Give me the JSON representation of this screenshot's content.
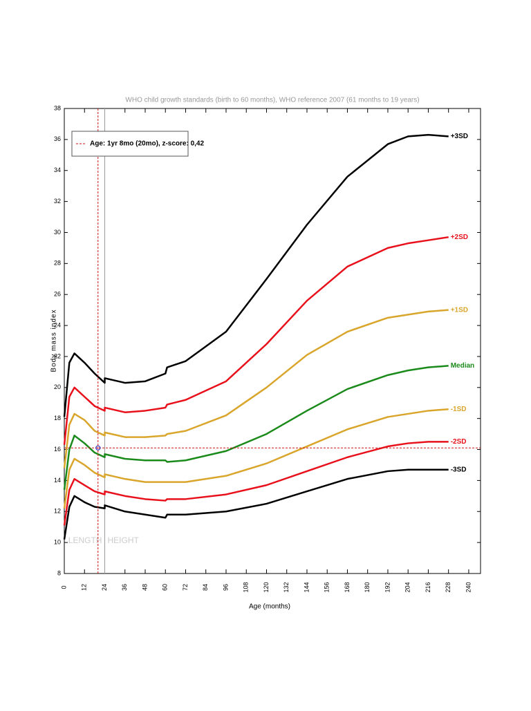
{
  "chart_data": {
    "type": "line",
    "title": "WHO child growth standards (birth to 60 months), WHO reference 2007 (61 months to 19 years)",
    "x_label": "Age (months)",
    "y_label": "Body mass index",
    "xlim": [
      0,
      247
    ],
    "ylim": [
      8,
      38
    ],
    "xticks": [
      0,
      12,
      24,
      36,
      48,
      60,
      72,
      84,
      96,
      108,
      120,
      132,
      144,
      156,
      168,
      180,
      192,
      204,
      216,
      228,
      240
    ],
    "yticks": [
      8,
      10,
      12,
      14,
      16,
      18,
      20,
      22,
      24,
      26,
      28,
      30,
      32,
      34,
      36,
      38
    ],
    "x": [
      0,
      3,
      6,
      12,
      18,
      24,
      24,
      36,
      48,
      60,
      61,
      72,
      96,
      120,
      144,
      168,
      192,
      204,
      216,
      228
    ],
    "series": [
      {
        "name": "+3SD",
        "color": "#000000",
        "values": [
          18.1,
          21.6,
          22.2,
          21.6,
          20.9,
          20.3,
          20.6,
          20.3,
          20.4,
          20.9,
          21.3,
          21.7,
          23.6,
          27.0,
          30.5,
          33.6,
          35.7,
          36.2,
          36.3,
          36.2
        ]
      },
      {
        "name": "+2SD",
        "color": "#e8101a",
        "values": [
          16.3,
          19.4,
          20.0,
          19.4,
          18.8,
          18.5,
          18.7,
          18.4,
          18.5,
          18.7,
          18.9,
          19.2,
          20.4,
          22.8,
          25.6,
          27.8,
          29.0,
          29.3,
          29.5,
          29.7
        ]
      },
      {
        "name": "+1SD",
        "color": "#d9a52a",
        "values": [
          14.8,
          17.6,
          18.3,
          17.9,
          17.2,
          16.9,
          17.1,
          16.8,
          16.8,
          16.9,
          17.0,
          17.2,
          18.2,
          20.0,
          22.1,
          23.6,
          24.5,
          24.7,
          24.9,
          25.0
        ]
      },
      {
        "name": "Median",
        "color": "#1a8a1a",
        "values": [
          13.4,
          16.0,
          16.9,
          16.4,
          15.8,
          15.5,
          15.7,
          15.4,
          15.3,
          15.3,
          15.2,
          15.3,
          15.9,
          17.0,
          18.5,
          19.9,
          20.8,
          21.1,
          21.3,
          21.4
        ]
      },
      {
        "name": "-1SD",
        "color": "#d9a52a",
        "values": [
          12.2,
          14.7,
          15.4,
          15.0,
          14.5,
          14.2,
          14.4,
          14.1,
          13.9,
          13.9,
          13.9,
          13.9,
          14.3,
          15.1,
          16.2,
          17.3,
          18.1,
          18.3,
          18.5,
          18.6
        ]
      },
      {
        "name": "-2SD",
        "color": "#e8101a",
        "values": [
          11.1,
          13.4,
          14.1,
          13.7,
          13.3,
          13.1,
          13.3,
          13.0,
          12.8,
          12.7,
          12.8,
          12.8,
          13.1,
          13.7,
          14.6,
          15.5,
          16.2,
          16.4,
          16.5,
          16.5
        ]
      },
      {
        "name": "-3SD",
        "color": "#000000",
        "values": [
          10.2,
          12.3,
          13.0,
          12.6,
          12.3,
          12.2,
          12.4,
          12.0,
          11.8,
          11.6,
          11.8,
          11.8,
          12.0,
          12.5,
          13.3,
          14.1,
          14.6,
          14.7,
          14.7,
          14.7
        ]
      }
    ],
    "marker": {
      "x": 20,
      "y": 16.1,
      "label": "Age: 1yr 8mo (20mo), z-score: 0,42",
      "color": "#d01010"
    },
    "divider_x": 24,
    "annotations": [
      "LENGTH",
      "HEIGHT"
    ]
  }
}
